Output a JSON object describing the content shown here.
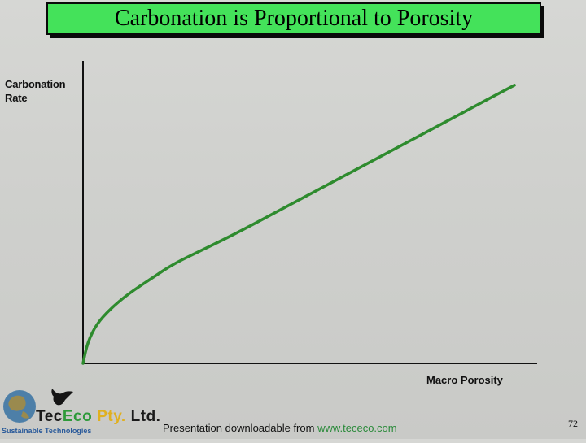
{
  "slide": {
    "title": "Carbonation is Proportional to Porosity",
    "footer_text": "Presentation downloadable from ",
    "footer_link": "www.tececo.com",
    "page_number": "72"
  },
  "logo": {
    "brand_tec": "Tec",
    "brand_eco": "Eco",
    "brand_pty": "Pty.",
    "brand_ltd": "Ltd.",
    "tagline": "Sustainable Technologies"
  },
  "colors": {
    "title_bg": "#44e25a",
    "curve": "#2e8b2e",
    "axis": "#111111"
  },
  "chart_data": {
    "type": "line",
    "title": "",
    "xlabel": "Macro Porosity",
    "ylabel": "Carbonation Rate",
    "xlim": [
      0,
      1
    ],
    "ylim": [
      0,
      1
    ],
    "grid": false,
    "legend": "none",
    "series": [
      {
        "values": [
          [
            0.0,
            0.0
          ],
          [
            0.01,
            0.07
          ],
          [
            0.03,
            0.13
          ],
          [
            0.06,
            0.18
          ],
          [
            0.1,
            0.23
          ],
          [
            0.15,
            0.28
          ],
          [
            0.2,
            0.33
          ],
          [
            0.27,
            0.38
          ],
          [
            0.35,
            0.44
          ],
          [
            0.45,
            0.52
          ],
          [
            0.55,
            0.6
          ],
          [
            0.65,
            0.68
          ],
          [
            0.75,
            0.76
          ],
          [
            0.85,
            0.84
          ],
          [
            0.95,
            0.92
          ]
        ]
      }
    ]
  }
}
